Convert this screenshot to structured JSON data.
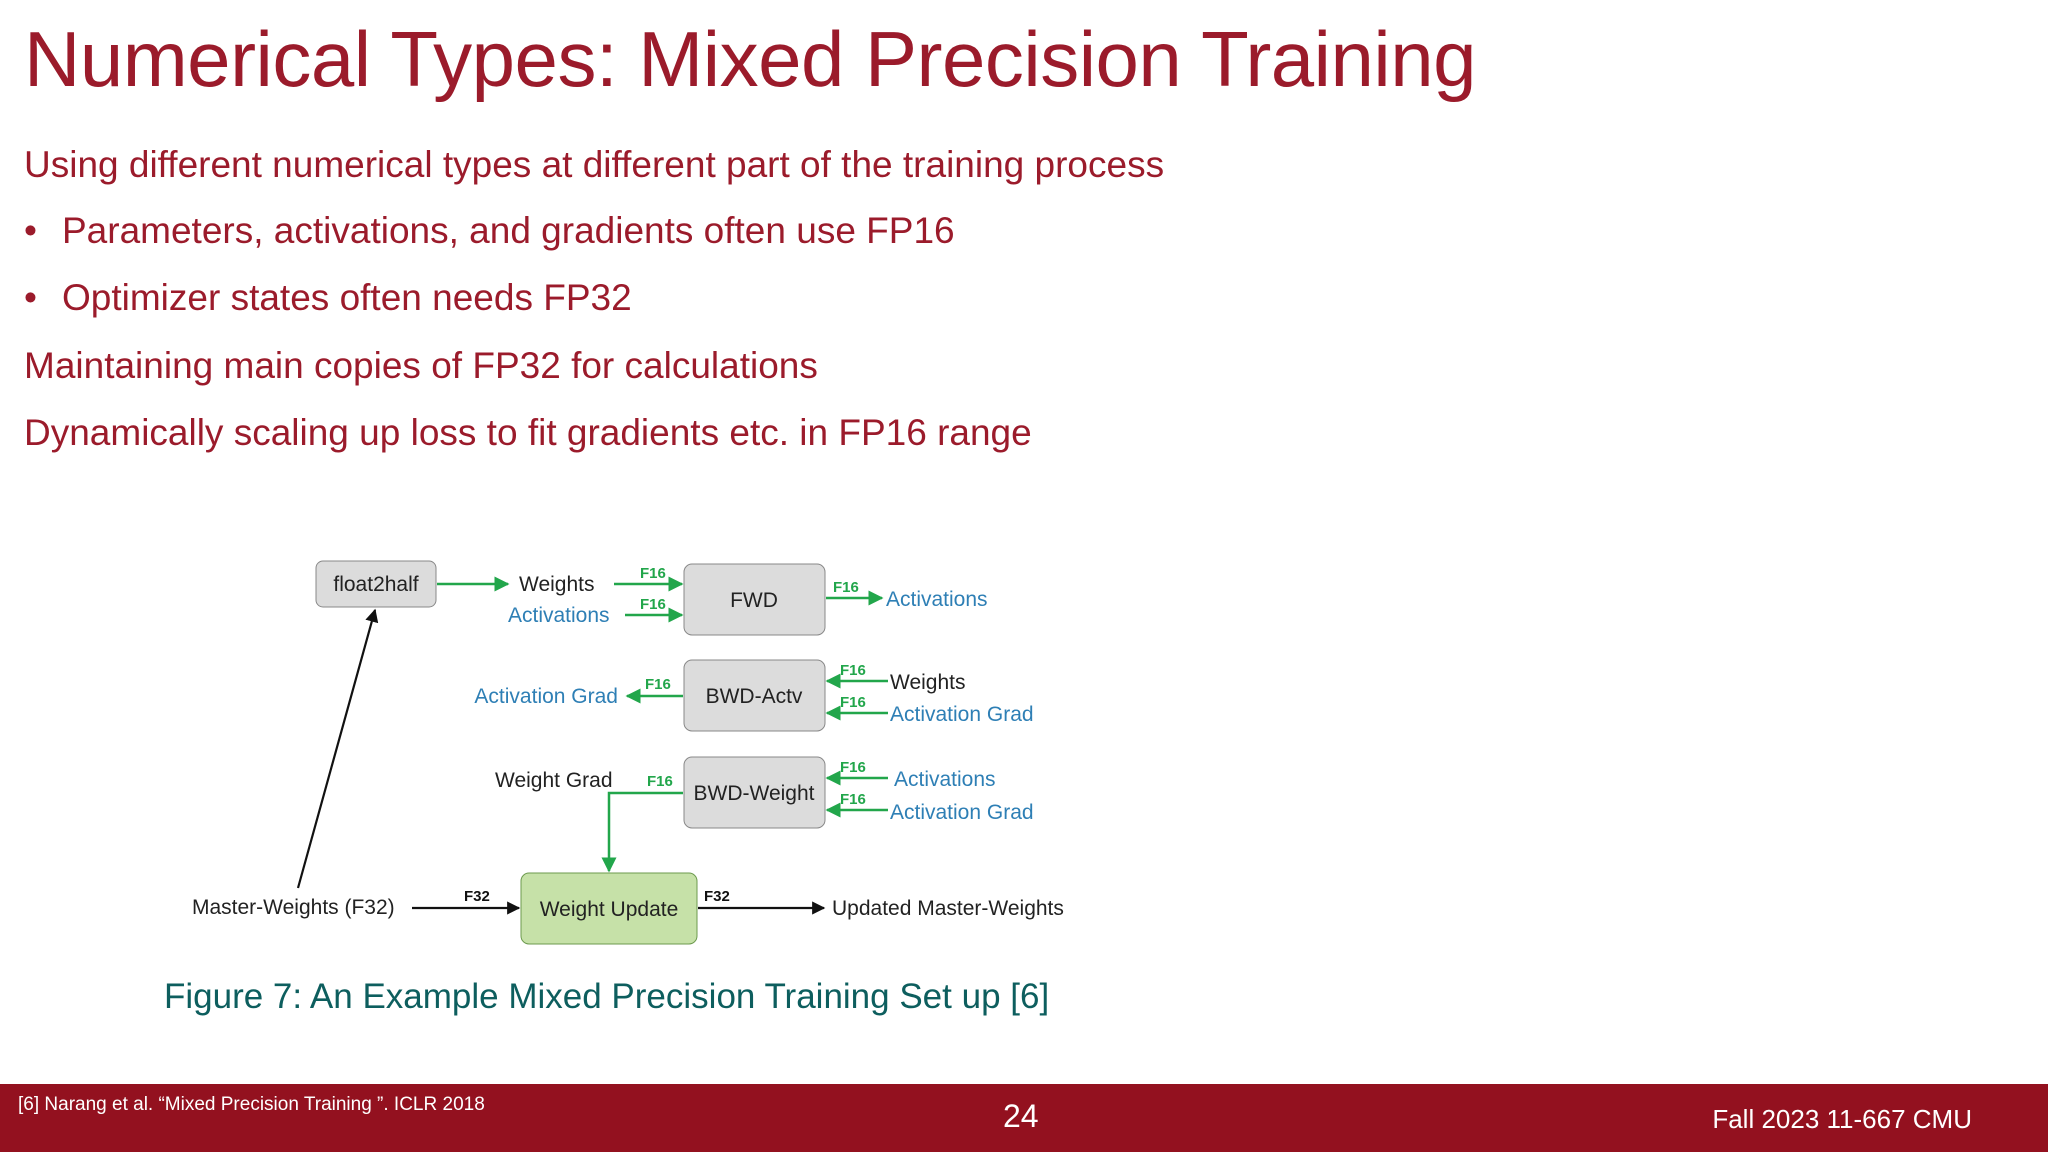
{
  "slide": {
    "title": "Numerical Types: Mixed Precision Training",
    "lines": [
      "Using different numerical types at different part of the training process",
      "Maintaining main copies of FP32 for calculations",
      "Dynamically scaling up loss to fit gradients etc. in FP16 range"
    ],
    "bullets": [
      "Parameters, activations, and gradients often use FP16",
      "Optimizer states often needs FP32"
    ],
    "bullet_symbol": "•"
  },
  "diagram": {
    "boxes": {
      "float2half": "float2half",
      "fwd": "FWD",
      "bwd_actv": "BWD-Actv",
      "bwd_weight": "BWD-Weight",
      "weight_update": "Weight Update"
    },
    "labels": {
      "weights_in": "Weights",
      "activations_in": "Activations",
      "activations_out": "Activations",
      "activation_grad_out": "Activation Grad",
      "weights_bwd": "Weights",
      "activation_grad_bwd": "Activation Grad",
      "weight_grad": "Weight Grad",
      "activations_bwdw": "Activations",
      "activation_grad_bwdw": "Activation Grad",
      "master_weights": "Master-Weights (F32)",
      "updated_master": "Updated Master-Weights"
    },
    "tags": {
      "f16": "F16",
      "f32": "F32"
    },
    "colors": {
      "box_gray": "#dcdcdc",
      "box_green": "#c6e1a8",
      "arrow_green": "#22a64b",
      "text_blue": "#2e7fb5"
    }
  },
  "caption": "Figure 7: An Example Mixed Precision Training Set up [6]",
  "footer": {
    "reference": "[6] Narang et al. “Mixed Precision Training ”. ICLR 2018",
    "page_number": "24",
    "course": "Fall 2023 11-667 CMU"
  }
}
